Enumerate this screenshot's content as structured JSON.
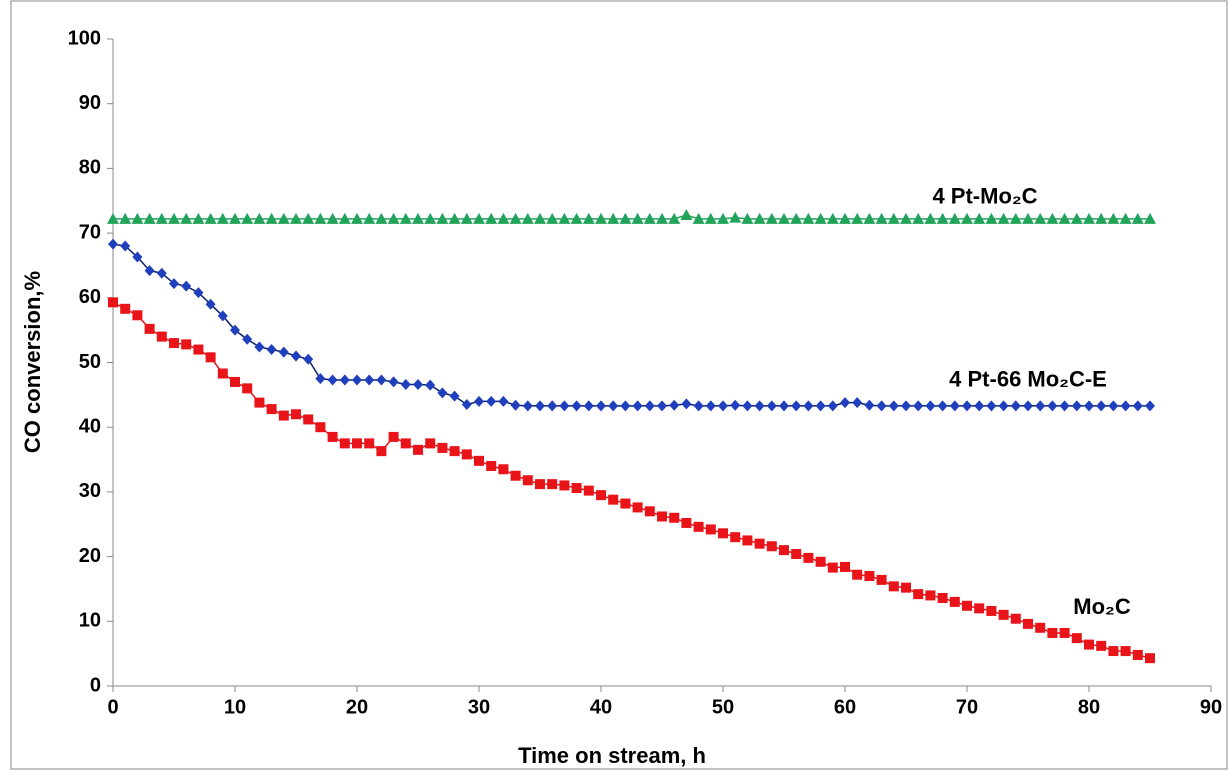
{
  "chart_data": {
    "type": "line",
    "xlabel": "Time on stream, h",
    "ylabel": "CO conversion,%",
    "xlim": [
      0,
      90
    ],
    "xticks": [
      0,
      10,
      20,
      30,
      40,
      50,
      60,
      70,
      80,
      90
    ],
    "ylim": [
      0,
      100
    ],
    "yticks": [
      0,
      10,
      20,
      30,
      40,
      50,
      60,
      70,
      80,
      90,
      100
    ],
    "grid": false,
    "x": [
      0,
      1,
      2,
      3,
      4,
      5,
      6,
      7,
      8,
      9,
      10,
      11,
      12,
      13,
      14,
      15,
      16,
      17,
      18,
      19,
      20,
      21,
      22,
      23,
      24,
      25,
      26,
      27,
      28,
      29,
      30,
      31,
      32,
      33,
      34,
      35,
      36,
      37,
      38,
      39,
      40,
      41,
      42,
      43,
      44,
      45,
      46,
      47,
      48,
      49,
      50,
      51,
      52,
      53,
      54,
      55,
      56,
      57,
      58,
      59,
      60,
      61,
      62,
      63,
      64,
      65,
      66,
      67,
      68,
      69,
      70,
      71,
      72,
      73,
      74,
      75,
      76,
      77,
      78,
      79,
      80,
      81,
      82,
      83,
      84,
      85
    ],
    "series": [
      {
        "name": "4 Pt-Mo₂C",
        "color": "#22a35a",
        "marker": "triangle",
        "values": [
          72.2,
          72.2,
          72.2,
          72.2,
          72.2,
          72.2,
          72.2,
          72.2,
          72.2,
          72.2,
          72.2,
          72.2,
          72.2,
          72.2,
          72.2,
          72.2,
          72.2,
          72.2,
          72.2,
          72.2,
          72.2,
          72.2,
          72.2,
          72.2,
          72.2,
          72.2,
          72.2,
          72.2,
          72.2,
          72.2,
          72.2,
          72.2,
          72.2,
          72.2,
          72.2,
          72.2,
          72.2,
          72.2,
          72.2,
          72.2,
          72.2,
          72.2,
          72.2,
          72.2,
          72.2,
          72.2,
          72.2,
          72.8,
          72.2,
          72.2,
          72.2,
          72.4,
          72.2,
          72.2,
          72.2,
          72.2,
          72.2,
          72.2,
          72.2,
          72.2,
          72.2,
          72.2,
          72.2,
          72.2,
          72.2,
          72.2,
          72.2,
          72.2,
          72.2,
          72.2,
          72.2,
          72.2,
          72.2,
          72.2,
          72.2,
          72.2,
          72.2,
          72.2,
          72.2,
          72.2,
          72.2,
          72.2,
          72.2,
          72.2,
          72.2,
          72.2
        ]
      },
      {
        "name": "4 Pt-66 Mo₂C-E",
        "color": "#1f3fbf",
        "marker": "diamond",
        "values": [
          68.3,
          68,
          66.3,
          64.2,
          63.8,
          62.2,
          61.8,
          60.8,
          59,
          57.2,
          55,
          53.6,
          52.4,
          52,
          51.6,
          51,
          50.5,
          47.5,
          47.3,
          47.3,
          47.3,
          47.3,
          47.3,
          47,
          46.6,
          46.6,
          46.5,
          45.3,
          44.8,
          43.5,
          44,
          44,
          44,
          43.4,
          43.3,
          43.3,
          43.3,
          43.3,
          43.3,
          43.3,
          43.3,
          43.3,
          43.3,
          43.3,
          43.3,
          43.3,
          43.4,
          43.6,
          43.3,
          43.3,
          43.3,
          43.4,
          43.3,
          43.3,
          43.3,
          43.3,
          43.3,
          43.3,
          43.3,
          43.3,
          43.8,
          43.8,
          43.4,
          43.3,
          43.3,
          43.3,
          43.3,
          43.3,
          43.3,
          43.3,
          43.3,
          43.3,
          43.3,
          43.3,
          43.3,
          43.3,
          43.3,
          43.3,
          43.3,
          43.3,
          43.3,
          43.3,
          43.3,
          43.3,
          43.3,
          43.3
        ]
      },
      {
        "name": "Mo₂C",
        "color": "#e8141a",
        "marker": "square",
        "values": [
          59.3,
          58.3,
          57.3,
          55.2,
          54,
          53,
          52.8,
          52,
          50.8,
          48.3,
          47,
          46,
          43.8,
          42.8,
          41.8,
          42,
          41.2,
          40,
          38.5,
          37.5,
          37.5,
          37.5,
          36.3,
          38.5,
          37.5,
          36.5,
          37.5,
          36.8,
          36.3,
          35.8,
          34.8,
          34,
          33.5,
          32.5,
          31.8,
          31.2,
          31.2,
          31,
          30.6,
          30.2,
          29.5,
          28.8,
          28.2,
          27.6,
          27,
          26.2,
          26,
          25.2,
          24.6,
          24.2,
          23.6,
          23,
          22.5,
          22,
          21.6,
          21,
          20.4,
          19.8,
          19.2,
          18.3,
          18.4,
          17.2,
          17,
          16.4,
          15.4,
          15.2,
          14.2,
          14,
          13.6,
          13,
          12.4,
          12,
          11.6,
          11,
          10.4,
          9.6,
          9,
          8.2,
          8.2,
          7.4,
          6.4,
          6.2,
          5.4,
          5.4,
          4.8,
          4.3
        ]
      }
    ]
  }
}
